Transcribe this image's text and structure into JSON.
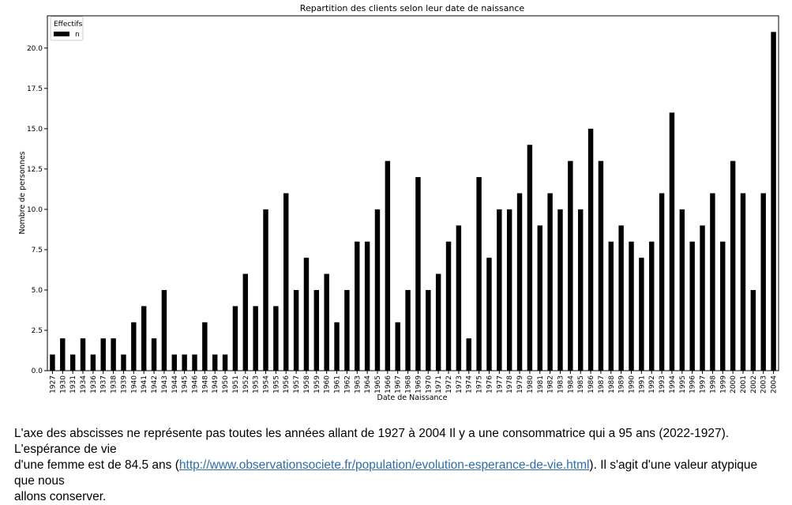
{
  "chart_data": {
    "type": "bar",
    "title": "Repartition des clients selon leur date de naissance",
    "xlabel": "Date de Naissance",
    "ylabel": "Nombre de personnes",
    "ylim": [
      0,
      22
    ],
    "yticks": [
      "0.0",
      "2.5",
      "5.0",
      "7.5",
      "10.0",
      "12.5",
      "15.0",
      "17.5",
      "20.0"
    ],
    "legend": {
      "title": "Effectifs",
      "placement": "top-left"
    },
    "categories": [
      "1927",
      "1930",
      "1931",
      "1934",
      "1936",
      "1937",
      "1938",
      "1939",
      "1940",
      "1941",
      "1942",
      "1943",
      "1944",
      "1945",
      "1946",
      "1948",
      "1949",
      "1950",
      "1951",
      "1952",
      "1953",
      "1954",
      "1955",
      "1956",
      "1957",
      "1958",
      "1959",
      "1960",
      "1961",
      "1962",
      "1963",
      "1964",
      "1965",
      "1966",
      "1967",
      "1968",
      "1969",
      "1970",
      "1971",
      "1972",
      "1973",
      "1974",
      "1975",
      "1976",
      "1977",
      "1978",
      "1979",
      "1980",
      "1981",
      "1982",
      "1983",
      "1984",
      "1985",
      "1986",
      "1987",
      "1988",
      "1989",
      "1990",
      "1991",
      "1992",
      "1993",
      "1994",
      "1995",
      "1996",
      "1997",
      "1998",
      "1999",
      "2000",
      "2001",
      "2002",
      "2003",
      "2004"
    ],
    "series": [
      {
        "name": "n",
        "color": "#000000",
        "values": [
          1,
          2,
          1,
          2,
          1,
          2,
          2,
          1,
          3,
          4,
          2,
          5,
          1,
          1,
          1,
          3,
          1,
          1,
          4,
          6,
          4,
          10,
          4,
          11,
          5,
          7,
          5,
          6,
          3,
          5,
          8,
          8,
          10,
          13,
          3,
          5,
          12,
          5,
          6,
          8,
          9,
          2,
          12,
          7,
          10,
          10,
          11,
          14,
          9,
          11,
          10,
          13,
          10,
          15,
          13,
          8,
          9,
          8,
          7,
          8,
          11,
          16,
          10,
          8,
          9,
          11,
          8,
          13,
          11,
          5,
          11,
          21
        ]
      }
    ]
  },
  "note": {
    "line1": "L'axe des abscisses ne représente pas toutes les années allant de 1927 à 2004 Il y a une consommatrice qui a 95 ans (2022-1927). L'espérance de vie",
    "line2_before": "d'une femme est de 84.5 ans (",
    "link": "http://www.observationsociete.fr/population/evolution-esperance-de-vie.html",
    "line2_after": "). Il s'agit d'une valeur atypique que nous",
    "line3": "allons conserver."
  }
}
